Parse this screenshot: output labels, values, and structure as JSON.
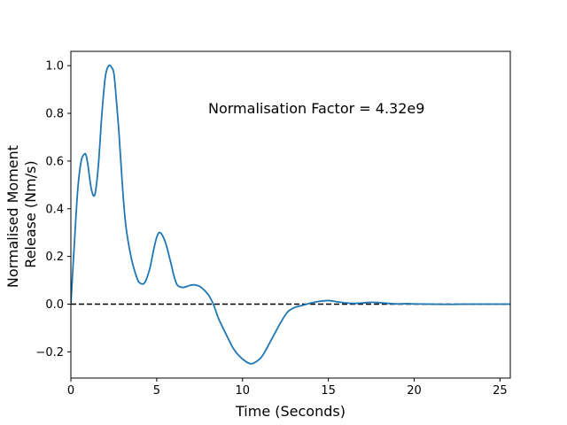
{
  "chart_data": {
    "type": "line",
    "title": "",
    "xlabel": "Time (Seconds)",
    "ylabel_lines": [
      "Normalised Moment",
      "Release (Nm/s)"
    ],
    "xlim": [
      0,
      25.6
    ],
    "ylim": [
      -0.31,
      1.06
    ],
    "x_ticks": [
      0,
      5,
      10,
      15,
      20,
      25
    ],
    "x_tick_labels": [
      "0",
      "5",
      "10",
      "15",
      "20",
      "25"
    ],
    "y_ticks": [
      -0.2,
      0.0,
      0.2,
      0.4,
      0.6,
      0.8,
      1.0
    ],
    "y_tick_labels": [
      "−0.2",
      "0.0",
      "0.2",
      "0.4",
      "0.6",
      "0.8",
      "1.0"
    ],
    "grid": false,
    "annotation": "Normalisation Factor = 4.32e9",
    "reference_line": {
      "y": 0.0,
      "style": "dashed",
      "color": "#000000"
    },
    "series_color": "#1f77b4",
    "series": [
      {
        "x": [
          0,
          0.2,
          0.4,
          0.6,
          0.8,
          0.9,
          1.0,
          1.2,
          1.4,
          1.6,
          1.8,
          2.0,
          2.2,
          2.4,
          2.5,
          2.6,
          2.8,
          3.0,
          3.2,
          3.5,
          3.8,
          4.0,
          4.3,
          4.6,
          4.8,
          5.0,
          5.2,
          5.5,
          5.8,
          6.0,
          6.2,
          6.5,
          6.8,
          7.0,
          7.3,
          7.6,
          8.0,
          8.3,
          8.6,
          9.0,
          9.5,
          10.0,
          10.5,
          11.0,
          11.3,
          11.6,
          11.9,
          12.2,
          12.6,
          13.0,
          13.5,
          14.0,
          14.5,
          15.0,
          15.5,
          16.0,
          16.5,
          17.0,
          17.5,
          18.0,
          18.5,
          19.0,
          19.5,
          20.0,
          21.0,
          22.0,
          23.0,
          24.0,
          25.0,
          25.6
        ],
        "y": [
          0.0,
          0.25,
          0.48,
          0.6,
          0.63,
          0.62,
          0.58,
          0.48,
          0.46,
          0.58,
          0.79,
          0.95,
          1.0,
          0.99,
          0.97,
          0.9,
          0.72,
          0.5,
          0.33,
          0.2,
          0.12,
          0.09,
          0.09,
          0.15,
          0.22,
          0.28,
          0.3,
          0.26,
          0.18,
          0.12,
          0.08,
          0.07,
          0.075,
          0.08,
          0.08,
          0.07,
          0.04,
          0.0,
          -0.06,
          -0.12,
          -0.19,
          -0.23,
          -0.25,
          -0.23,
          -0.2,
          -0.16,
          -0.12,
          -0.08,
          -0.035,
          -0.015,
          -0.005,
          0.005,
          0.012,
          0.015,
          0.01,
          0.005,
          0.003,
          0.005,
          0.008,
          0.006,
          0.003,
          0.001,
          0.002,
          0.001,
          0.0,
          -0.001,
          0.0,
          0.0,
          0.0,
          0.0
        ]
      }
    ]
  }
}
